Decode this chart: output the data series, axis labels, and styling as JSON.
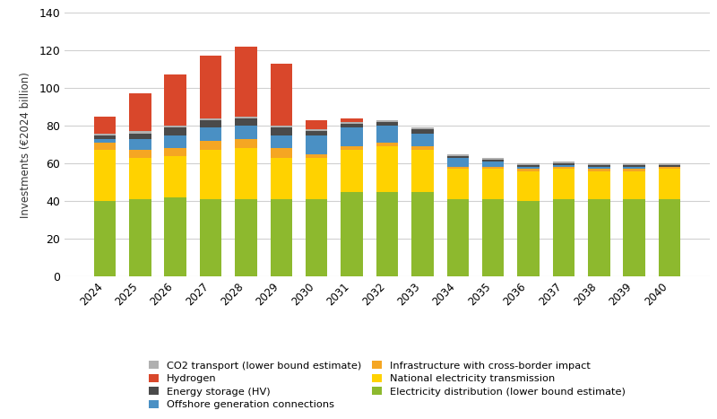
{
  "years": [
    2024,
    2025,
    2026,
    2027,
    2028,
    2029,
    2030,
    2031,
    2032,
    2033,
    2034,
    2035,
    2036,
    2037,
    2038,
    2039,
    2040
  ],
  "series": {
    "Electricity distribution (lower bound estimate)": [
      40,
      41,
      42,
      41,
      41,
      41,
      41,
      45,
      45,
      45,
      41,
      41,
      40,
      41,
      41,
      41,
      41
    ],
    "National electricity transmission": [
      27,
      22,
      22,
      26,
      27,
      22,
      22,
      22,
      24,
      22,
      16,
      16,
      16,
      16,
      15,
      15,
      16
    ],
    "Infrastructure with cross-border impact": [
      4,
      4,
      4,
      5,
      5,
      5,
      2,
      2,
      2,
      2,
      1,
      1,
      1,
      1,
      1,
      1,
      1
    ],
    "Offshore generation connections": [
      2,
      6,
      7,
      7,
      7,
      7,
      10,
      10,
      9,
      7,
      5,
      3,
      1,
      1,
      1,
      1,
      0
    ],
    "Energy storage (HV)": [
      2,
      3,
      4,
      4,
      4,
      4,
      2,
      2,
      2,
      2,
      1,
      1,
      1,
      1,
      1,
      1,
      1
    ],
    "CO2 transport (lower bound estimate)": [
      1,
      1,
      1,
      1,
      1,
      1,
      1,
      1,
      1,
      1,
      1,
      1,
      1,
      1,
      1,
      1,
      1
    ],
    "Hydrogen": [
      9,
      20,
      27,
      33,
      37,
      33,
      5,
      2,
      0,
      0,
      0,
      0,
      0,
      0,
      0,
      0,
      0
    ]
  },
  "colors": {
    "Electricity distribution (lower bound estimate)": "#8db92e",
    "National electricity transmission": "#ffd200",
    "Infrastructure with cross-border impact": "#f5a623",
    "Offshore generation connections": "#4a90c4",
    "Energy storage (HV)": "#4a4a4a",
    "CO2 transport (lower bound estimate)": "#b0b0b0",
    "Hydrogen": "#d9472b"
  },
  "ylabel": "Investments (€2024 billion)",
  "ylim": [
    0,
    140
  ],
  "yticks": [
    0,
    20,
    40,
    60,
    80,
    100,
    120,
    140
  ],
  "background_color": "#ffffff",
  "grid_color": "#d0d0d0",
  "legend_left_col": [
    "CO2 transport (lower bound estimate)",
    "Energy storage (HV)",
    "Infrastructure with cross-border impact",
    "Electricity distribution (lower bound estimate)"
  ],
  "legend_right_col": [
    "Hydrogen",
    "Offshore generation connections",
    "National electricity transmission"
  ]
}
